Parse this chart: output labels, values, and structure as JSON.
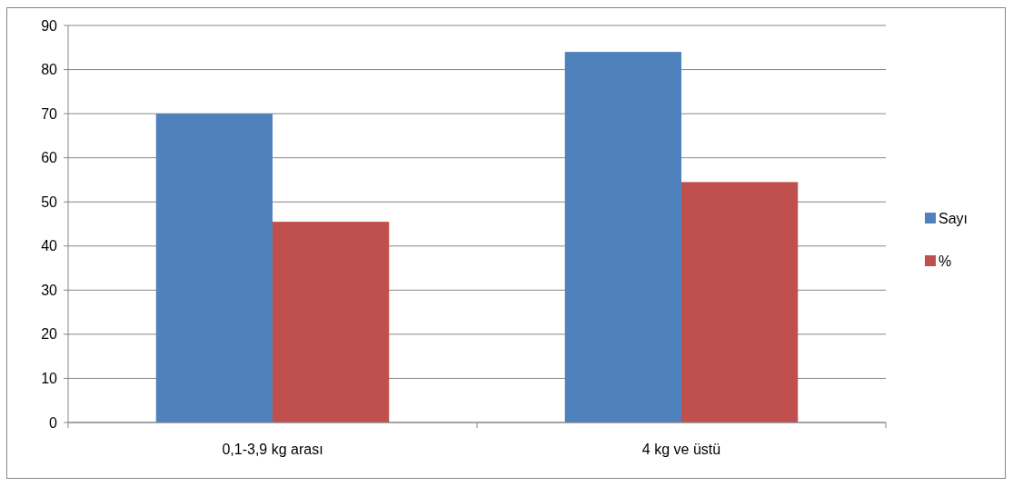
{
  "chart_data": {
    "type": "bar",
    "categories": [
      "0,1-3,9 kg arası",
      "4 kg ve üstü"
    ],
    "series": [
      {
        "name": "Sayı",
        "color": "#4f81bd",
        "values": [
          70,
          84
        ]
      },
      {
        "name": "%",
        "color": "#c0504d",
        "values": [
          45.5,
          54.5
        ]
      }
    ],
    "ylim": [
      0,
      90
    ],
    "yticks": [
      0,
      10,
      20,
      30,
      40,
      50,
      60,
      70,
      80,
      90
    ],
    "grid": "y",
    "legend": "right"
  }
}
